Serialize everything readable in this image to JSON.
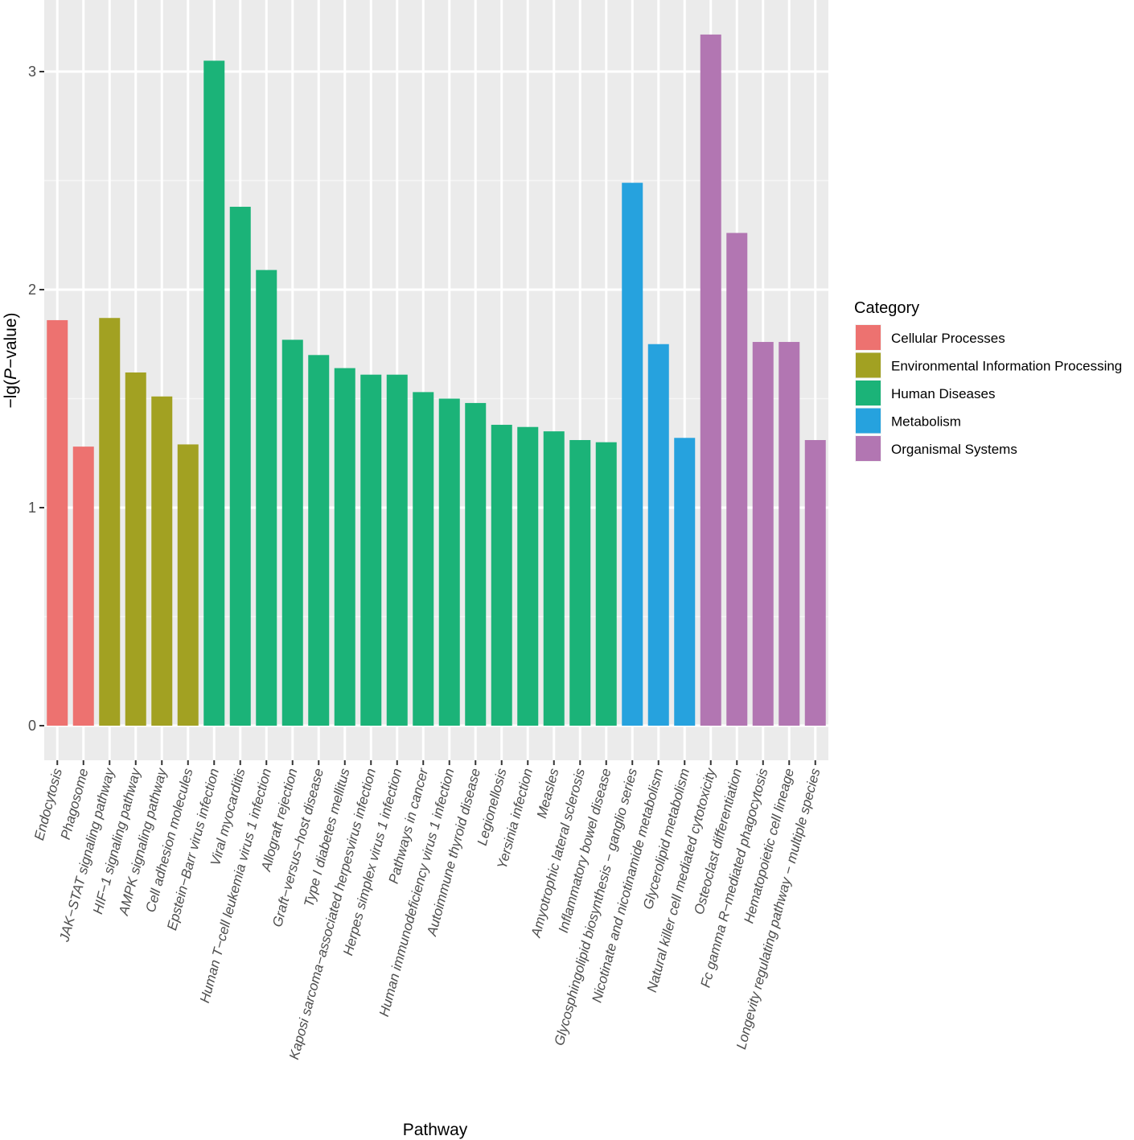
{
  "chart_data": {
    "type": "bar",
    "xlabel": "Pathway",
    "ylabel_prefix": "−lg(",
    "ylabel_italic": "P",
    "ylabel_suffix": "−value)",
    "ylim": [
      -0.15,
      3.22
    ],
    "yticks": [
      0,
      1,
      2,
      3
    ],
    "grid": true,
    "legend": {
      "title": "Category",
      "position": "right",
      "entries": [
        {
          "name": "Cellular Processes",
          "color": "#F8766D"
        },
        {
          "name": "Environmental Information Processing",
          "color": "#A3A500"
        },
        {
          "name": "Human Diseases",
          "color": "#00BF7D"
        },
        {
          "name": "Metabolism",
          "color": "#00B0F6"
        },
        {
          "name": "Organismal Systems",
          "color": "#E76BF3"
        }
      ]
    },
    "bars": [
      {
        "label": "Endocytosis",
        "value": 1.86,
        "category": 0
      },
      {
        "label": "Phagosome",
        "value": 1.28,
        "category": 0
      },
      {
        "label": "JAK−STAT signaling pathway",
        "value": 1.87,
        "category": 1
      },
      {
        "label": "HIF−1 signaling pathway",
        "value": 1.62,
        "category": 1
      },
      {
        "label": "AMPK signaling pathway",
        "value": 1.51,
        "category": 1
      },
      {
        "label": "Cell adhesion molecules",
        "value": 1.29,
        "category": 1
      },
      {
        "label": "Epstein−Barr virus infection",
        "value": 3.05,
        "category": 2
      },
      {
        "label": "Viral myocarditis",
        "value": 2.38,
        "category": 2
      },
      {
        "label": "Human T−cell leukemia virus 1 infection",
        "value": 2.09,
        "category": 2
      },
      {
        "label": "Allograft rejection",
        "value": 1.77,
        "category": 2
      },
      {
        "label": "Graft−versus−host disease",
        "value": 1.7,
        "category": 2
      },
      {
        "label": "Type I diabetes mellitus",
        "value": 1.64,
        "category": 2
      },
      {
        "label": "Kaposi sarcoma−associated herpesvirus infection",
        "value": 1.61,
        "category": 2
      },
      {
        "label": "Herpes simplex virus 1 infection",
        "value": 1.61,
        "category": 2
      },
      {
        "label": "Pathways in cancer",
        "value": 1.53,
        "category": 2
      },
      {
        "label": "Human immunodeficiency virus 1 infection",
        "value": 1.5,
        "category": 2
      },
      {
        "label": "Autoimmune thyroid disease",
        "value": 1.48,
        "category": 2
      },
      {
        "label": "Legionellosis",
        "value": 1.38,
        "category": 2
      },
      {
        "label": "Yersinia infection",
        "value": 1.37,
        "category": 2
      },
      {
        "label": "Measles",
        "value": 1.35,
        "category": 2
      },
      {
        "label": "Amyotrophic lateral sclerosis",
        "value": 1.31,
        "category": 2
      },
      {
        "label": "Inflammatory bowel disease",
        "value": 1.3,
        "category": 2
      },
      {
        "label": "Glycosphingolipid biosynthesis − ganglio series",
        "value": 2.49,
        "category": 3
      },
      {
        "label": "Nicotinate and nicotinamide metabolism",
        "value": 1.75,
        "category": 3
      },
      {
        "label": "Glycerolipid metabolism",
        "value": 1.32,
        "category": 3
      },
      {
        "label": "Natural killer cell mediated cytotoxicity",
        "value": 3.17,
        "category": 4
      },
      {
        "label": "Osteoclast differentiation",
        "value": 2.26,
        "category": 4
      },
      {
        "label": "Fc gamma R−mediated phagocytosis",
        "value": 1.76,
        "category": 4
      },
      {
        "label": "Hematopoietic cell lineage",
        "value": 1.76,
        "category": 4
      },
      {
        "label": "Longevity regulating pathway − multiple species",
        "value": 1.31,
        "category": 4
      }
    ],
    "colors": {
      "panel_background": "#EBEBEB",
      "grid_major": "#FFFFFF",
      "bar_colors": [
        "#ED7270",
        "#A2A122",
        "#1BB378",
        "#26A2DE",
        "#B276B2"
      ]
    }
  }
}
